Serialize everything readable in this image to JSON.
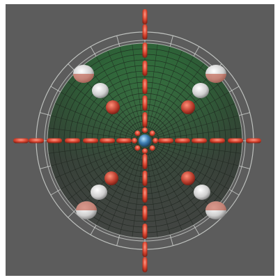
{
  "viewport": {
    "background": "#5c5c5c"
  },
  "scene": {
    "dome_color": "#2f6a3a",
    "dome_lower_color": "#3a3d3a",
    "wire_color": "#cfd2cf",
    "grid_color": "#1e241e",
    "bolt_color": "#d8432e",
    "cap_colors": {
      "white": "#d9d9d9",
      "red": "#b63a2a"
    },
    "hub_color": "#3f7fb4",
    "icons": [
      "dome-mesh",
      "spoke-bolts",
      "hemisphere-caps",
      "center-hub"
    ]
  }
}
